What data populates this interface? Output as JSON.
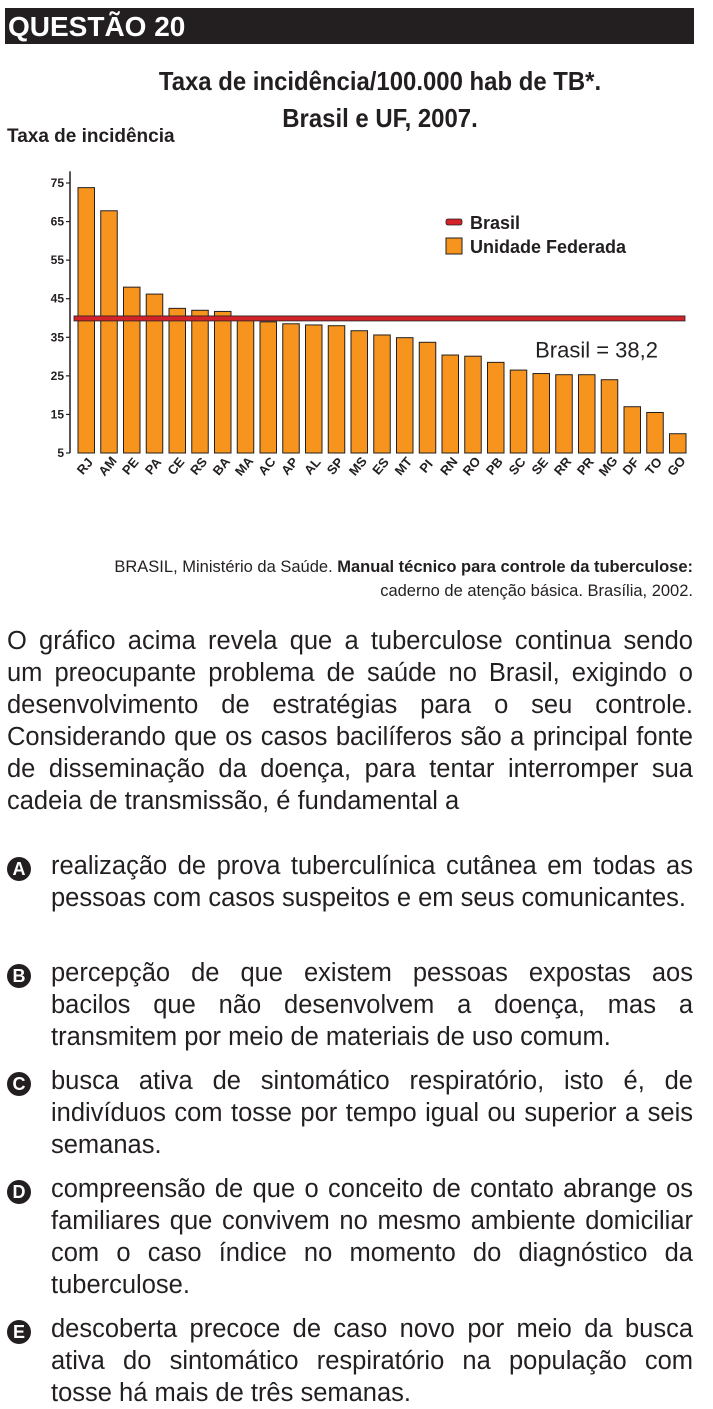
{
  "header": {
    "question": "QUESTÃO 20"
  },
  "chart_data": {
    "type": "bar",
    "title": "Taxa de incidência/100.000 hab de TB*.",
    "subtitle": "Brasil e UF, 2007.",
    "ylabel": "Taxa de incidência",
    "xlabel": "",
    "ylim": [
      5,
      78
    ],
    "yticks": [
      75,
      65,
      55,
      45,
      35,
      25,
      15,
      5
    ],
    "categories": [
      "RJ",
      "AM",
      "PE",
      "PA",
      "CE",
      "RS",
      "BA",
      "MA",
      "AC",
      "AP",
      "AL",
      "SP",
      "MS",
      "ES",
      "MT",
      "PI",
      "RN",
      "RO",
      "PB",
      "SC",
      "SE",
      "RR",
      "PR",
      "MG",
      "DF",
      "TO",
      "GO"
    ],
    "series": [
      {
        "name": "Unidade Federada",
        "color": "#f7941d",
        "values": [
          73.8,
          67.8,
          48,
          46.2,
          42.5,
          42,
          41.7,
          40.2,
          39,
          38.5,
          38.2,
          38,
          36.7,
          35.6,
          34.9,
          33.7,
          30.4,
          30.1,
          28.5,
          26.5,
          25.6,
          25.3,
          25.3,
          24,
          17,
          15.5,
          10
        ]
      }
    ],
    "reference_line": {
      "name": "Brasil",
      "value": 38.2,
      "label": "Brasil = 38,2",
      "color": "#d2232a"
    },
    "legend": {
      "position": "top-right",
      "items": [
        "Brasil",
        "Unidade Federada"
      ]
    },
    "grid": false
  },
  "source": {
    "prefix": "BRASIL, Ministério da Saúde. ",
    "bold": "Manual técnico para controle da tuberculose:",
    "line2": "caderno de atenção básica. Brasília, 2002."
  },
  "stem": "O gráfico acima revela que a tuberculose continua sendo um preocupante problema de saúde no Brasil, exigindo o desenvolvimento de estratégias para o seu controle. Considerando que os casos bacilíferos são a principal fonte de disseminação da doença, para tentar interromper sua cadeia de transmissão, é fundamental a",
  "options": [
    {
      "letter": "A",
      "text": "realização de prova tuberculínica cutânea em todas as pessoas com casos suspeitos e em seus comunicantes."
    },
    {
      "letter": "B",
      "text": "percepção de que existem pessoas expostas aos bacilos que não desenvolvem a doença, mas a transmitem por meio de materiais de uso comum."
    },
    {
      "letter": "C",
      "text": "busca ativa de sintomático respiratório, isto é, de indivíduos com tosse por tempo igual ou superior a seis semanas."
    },
    {
      "letter": "D",
      "text": "compreensão de que o conceito de contato abrange os familiares que convivem no mesmo ambiente domiciliar com o caso índice no momento do diagnóstico da tuberculose."
    },
    {
      "letter": "E",
      "text": "descoberta precoce de caso novo por meio da busca ativa do sintomático respiratório na população com tosse há mais de três semanas."
    }
  ]
}
